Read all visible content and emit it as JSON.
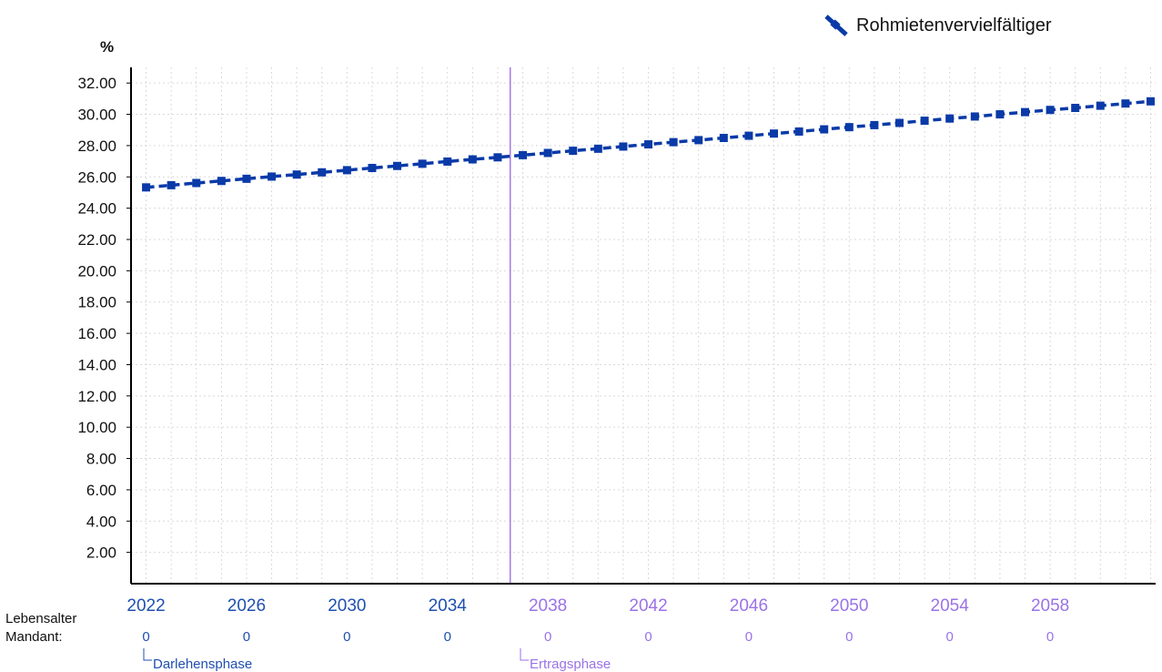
{
  "colors": {
    "series": "#0a3aa8",
    "phase1": "#1f4fb0",
    "phase2": "#9a72e6",
    "divider": "#a678e8",
    "axis": "#000000",
    "grid": "#d9d9d9"
  },
  "legend": {
    "label": "Rohmietenvervielfältiger",
    "icon": "line-marker-icon"
  },
  "chart_data": {
    "type": "line",
    "ylabel": "%",
    "ylim": [
      0,
      33
    ],
    "yticks": [
      "2.00",
      "4.00",
      "6.00",
      "8.00",
      "10.00",
      "12.00",
      "14.00",
      "16.00",
      "18.00",
      "20.00",
      "22.00",
      "24.00",
      "26.00",
      "28.00",
      "30.00",
      "32.00"
    ],
    "xlim": [
      2021.4,
      2062.2
    ],
    "xticks": [
      "2022",
      "2026",
      "2030",
      "2034",
      "2038",
      "2042",
      "2046",
      "2050",
      "2054",
      "2058"
    ],
    "age_row_label": [
      "Lebensalter",
      "Mandant:"
    ],
    "age_values": [
      "0",
      "0",
      "0",
      "0",
      "0",
      "0",
      "0",
      "0",
      "0",
      "0"
    ],
    "phase_boundary_year": 2036.5,
    "phases": [
      {
        "label": "Darlehensphase"
      },
      {
        "label": "Ertragsphase"
      }
    ],
    "series": [
      {
        "name": "Rohmietenvervielfältiger",
        "x": [
          2022,
          2023,
          2024,
          2025,
          2026,
          2027,
          2028,
          2029,
          2030,
          2031,
          2032,
          2033,
          2034,
          2035,
          2036,
          2037,
          2038,
          2039,
          2040,
          2041,
          2042,
          2043,
          2044,
          2045,
          2046,
          2047,
          2048,
          2049,
          2050,
          2051,
          2052,
          2053,
          2054,
          2055,
          2056,
          2057,
          2058,
          2059,
          2060,
          2061,
          2062
        ],
        "values": [
          25.33,
          25.47,
          25.61,
          25.74,
          25.88,
          26.02,
          26.15,
          26.29,
          26.43,
          26.57,
          26.7,
          26.84,
          26.98,
          27.12,
          27.25,
          27.39,
          27.53,
          27.67,
          27.8,
          27.94,
          28.08,
          28.22,
          28.35,
          28.49,
          28.63,
          28.77,
          28.9,
          29.04,
          29.18,
          29.31,
          29.45,
          29.59,
          29.73,
          29.86,
          30.0,
          30.14,
          30.28,
          30.41,
          30.55,
          30.69,
          30.83
        ]
      }
    ]
  }
}
